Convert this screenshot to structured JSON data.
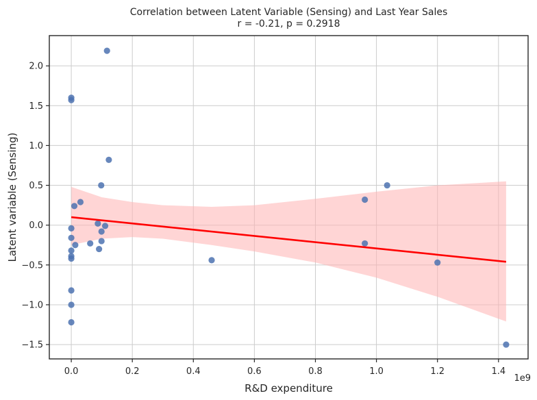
{
  "chart_data": {
    "type": "scatter",
    "title": "Correlation between Latent Variable (Sensing) and Last Year Sales",
    "subtitle": "r = -0.21, p = 0.2918",
    "xlabel": "R&D expenditure",
    "ylabel": "Latent variable (Sensing)",
    "x_offset_label": "1e9",
    "xlim": [
      -0.072,
      1.497
    ],
    "ylim": [
      -1.68,
      2.38
    ],
    "x_ticks": [
      0.0,
      0.2,
      0.4,
      0.6,
      0.8,
      1.0,
      1.2,
      1.4
    ],
    "x_tick_labels": [
      "0.0",
      "0.2",
      "0.4",
      "0.6",
      "0.8",
      "1.0",
      "1.2",
      "1.4"
    ],
    "y_ticks": [
      -1.5,
      -1.0,
      -0.5,
      0.0,
      0.5,
      1.0,
      1.5,
      2.0
    ],
    "y_tick_labels": [
      "−1.5",
      "−1.0",
      "−0.5",
      "0.0",
      "0.5",
      "1.0",
      "1.5",
      "2.0"
    ],
    "grid": true,
    "colors": {
      "points": "#4c72b0",
      "regression_line": "#ff0000",
      "confidence_band": "#ffb3b3",
      "grid": "#cccccc",
      "axes": "#262626"
    },
    "points": [
      {
        "x": 0.117,
        "y": 2.19
      },
      {
        "x": 0.0,
        "y": 1.6
      },
      {
        "x": 0.0,
        "y": 1.57
      },
      {
        "x": 0.123,
        "y": 0.82
      },
      {
        "x": 0.098,
        "y": 0.5
      },
      {
        "x": 1.035,
        "y": 0.5
      },
      {
        "x": 0.962,
        "y": 0.32
      },
      {
        "x": 0.03,
        "y": 0.29
      },
      {
        "x": 0.01,
        "y": 0.24
      },
      {
        "x": 0.087,
        "y": 0.02
      },
      {
        "x": 0.111,
        "y": -0.01
      },
      {
        "x": 0.0,
        "y": -0.04
      },
      {
        "x": 0.099,
        "y": -0.08
      },
      {
        "x": 0.0,
        "y": -0.16
      },
      {
        "x": 0.099,
        "y": -0.2
      },
      {
        "x": 0.062,
        "y": -0.23
      },
      {
        "x": 0.962,
        "y": -0.23
      },
      {
        "x": 0.013,
        "y": -0.25
      },
      {
        "x": 0.091,
        "y": -0.3
      },
      {
        "x": 0.0,
        "y": -0.32
      },
      {
        "x": 0.0,
        "y": -0.39
      },
      {
        "x": 0.0,
        "y": -0.42
      },
      {
        "x": 0.46,
        "y": -0.44
      },
      {
        "x": 1.2,
        "y": -0.47
      },
      {
        "x": 0.0,
        "y": -0.82
      },
      {
        "x": 0.0,
        "y": -1.0
      },
      {
        "x": 0.0,
        "y": -1.22
      },
      {
        "x": 1.425,
        "y": -1.5
      }
    ],
    "regression_line": [
      {
        "x": 0.0,
        "y": 0.1
      },
      {
        "x": 1.425,
        "y": -0.46
      }
    ],
    "confidence_band": [
      {
        "x": 0.0,
        "upper": 0.48,
        "lower": -0.25
      },
      {
        "x": 0.1,
        "upper": 0.35,
        "lower": -0.17
      },
      {
        "x": 0.2,
        "upper": 0.29,
        "lower": -0.15
      },
      {
        "x": 0.3,
        "upper": 0.25,
        "lower": -0.17
      },
      {
        "x": 0.46,
        "upper": 0.23,
        "lower": -0.25
      },
      {
        "x": 0.6,
        "upper": 0.25,
        "lower": -0.33
      },
      {
        "x": 0.8,
        "upper": 0.33,
        "lower": -0.47
      },
      {
        "x": 1.0,
        "upper": 0.42,
        "lower": -0.66
      },
      {
        "x": 1.2,
        "upper": 0.5,
        "lower": -0.9
      },
      {
        "x": 1.425,
        "upper": 0.55,
        "lower": -1.21
      }
    ]
  }
}
